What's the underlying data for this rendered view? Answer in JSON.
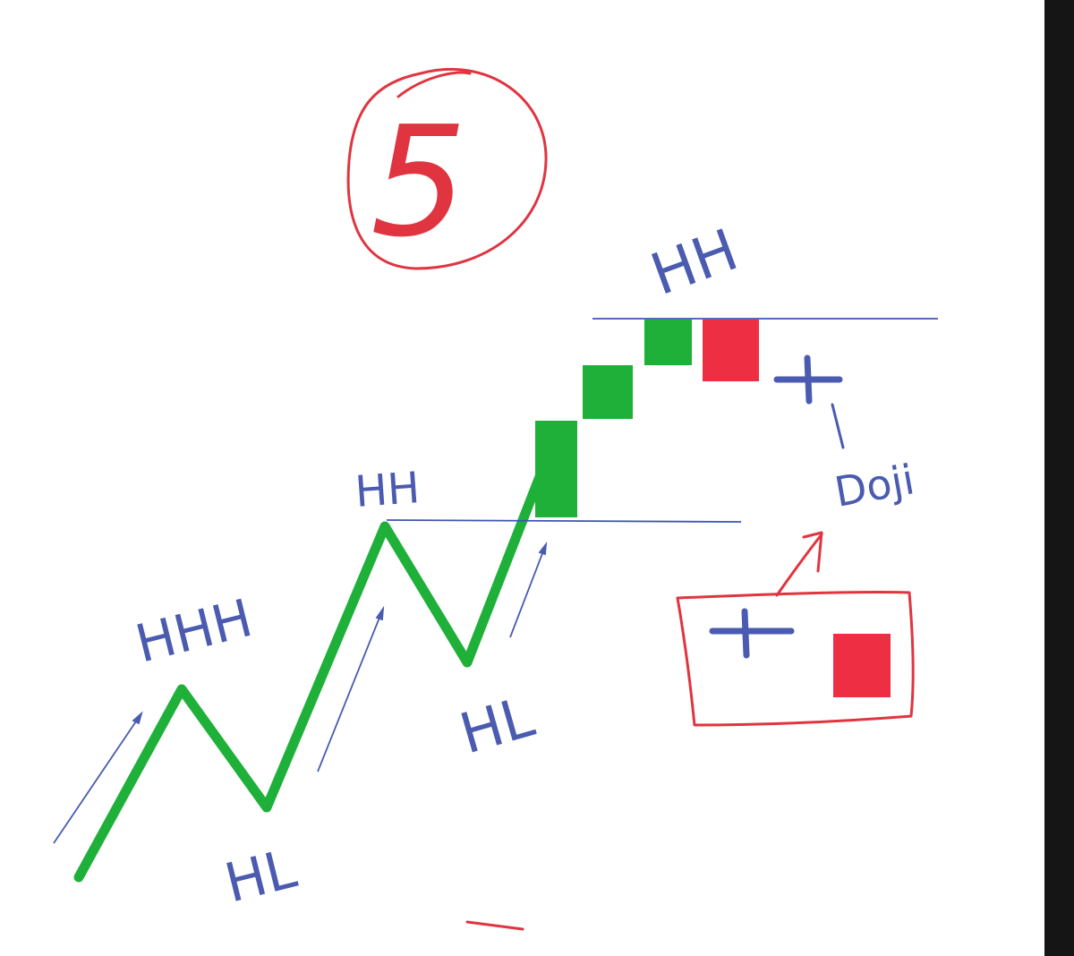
{
  "colors": {
    "trend": "#1fb03a",
    "ink_blue": "#4a5bb0",
    "level_line": "#3f55b0",
    "ink_red": "#e03540",
    "bear_candle": "#ee2f43",
    "bull_candle": "#1fb03a",
    "frame_bar": "#151515"
  },
  "step_marker": {
    "label": "5"
  },
  "labels": {
    "hh_first": "HHH",
    "hl_first": "HL",
    "hh_second": "HH",
    "hl_second": "HL",
    "hh_top": "HH",
    "doji": "Doji"
  },
  "icons": {
    "doji_symbol": "plus-cross-icon",
    "bear_symbol": "red-square-icon"
  }
}
